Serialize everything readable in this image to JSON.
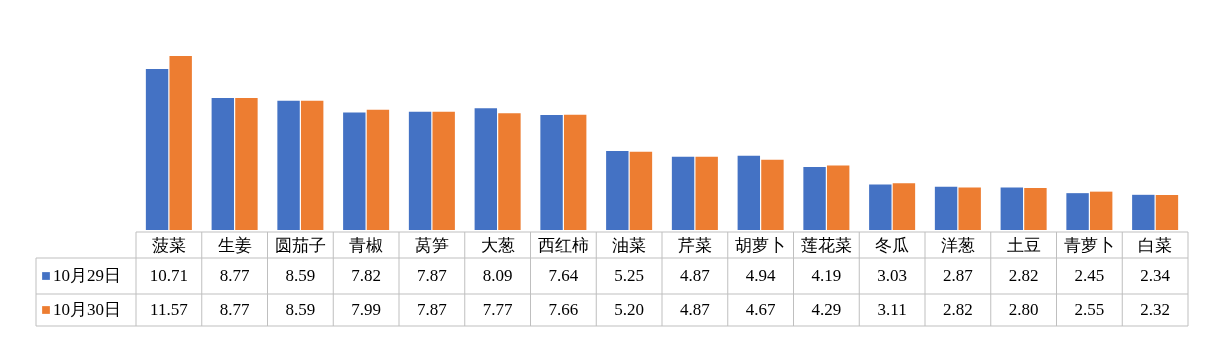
{
  "chart_data": {
    "type": "bar",
    "categories": [
      "菠菜",
      "生姜",
      "圆茄子",
      "青椒",
      "莴笋",
      "大葱",
      "西红柿",
      "油菜",
      "芹菜",
      "胡萝卜",
      "莲花菜",
      "冬瓜",
      "洋葱",
      "土豆",
      "青萝卜",
      "白菜"
    ],
    "series": [
      {
        "name": "10月29日",
        "color": "#4472c4",
        "values": [
          10.71,
          8.77,
          8.59,
          7.82,
          7.87,
          8.09,
          7.64,
          5.25,
          4.87,
          4.94,
          4.19,
          3.03,
          2.87,
          2.82,
          2.45,
          2.34
        ],
        "value_labels": [
          "10.71",
          "8.77",
          "8.59",
          "7.82",
          "7.87",
          "8.09",
          "7.64",
          "5.25",
          "4.87",
          "4.94",
          "4.19",
          "3.03",
          "2.87",
          "2.82",
          "2.45",
          "2.34"
        ]
      },
      {
        "name": "10月30日",
        "color": "#ed7d31",
        "values": [
          11.57,
          8.77,
          8.59,
          7.99,
          7.87,
          7.77,
          7.66,
          5.2,
          4.87,
          4.67,
          4.29,
          3.11,
          2.82,
          2.8,
          2.55,
          2.32
        ],
        "value_labels": [
          "11.57",
          "8.77",
          "8.59",
          "7.99",
          "7.87",
          "7.77",
          "7.66",
          "5.20",
          "4.87",
          "4.67",
          "4.29",
          "3.11",
          "2.82",
          "2.80",
          "2.55",
          "2.32"
        ]
      }
    ],
    "legend": "bottom left"
  }
}
